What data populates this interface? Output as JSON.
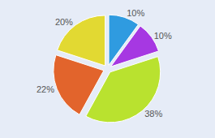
{
  "chart_data": {
    "type": "pie",
    "values": [
      10,
      10,
      38,
      22,
      20
    ],
    "value_labels": [
      "10%",
      "10%",
      "38%",
      "22%",
      "20%"
    ],
    "colors": [
      "#2f9be0",
      "#a638e2",
      "#b9e22f",
      "#e2642c",
      "#e2d932"
    ],
    "data_labels": true,
    "legend": false
  }
}
